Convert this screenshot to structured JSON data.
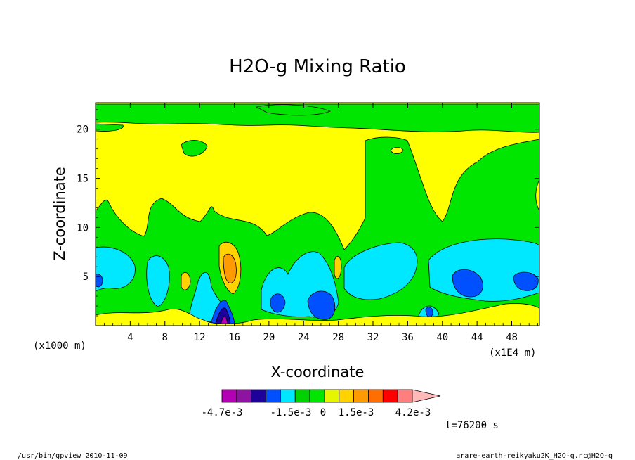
{
  "chart_data": {
    "type": "heatmap",
    "title": "H2O-g Mixing Ratio",
    "xlabel": "X-coordinate",
    "ylabel": "Z-coordinate",
    "x_ticks": [
      4,
      8,
      12,
      16,
      20,
      24,
      28,
      32,
      36,
      40,
      44,
      48
    ],
    "y_ticks": [
      5,
      10,
      15,
      20
    ],
    "xlim": [
      0,
      51.2
    ],
    "ylim": [
      0,
      22.7
    ],
    "x_unit_left": "(x1000 m)",
    "x_unit_right": "(x1E4 m)",
    "colorbar": {
      "colors": [
        "#b400b4",
        "#8c14a0",
        "#1e009b",
        "#0050ff",
        "#00e8ff",
        "#00d200",
        "#00e600",
        "#e6f500",
        "#ffd200",
        "#ff9b00",
        "#ff6e00",
        "#ff0000",
        "#ff7f7f",
        "#ffb9b9"
      ],
      "labels": [
        "-4.7e-3",
        "-1.5e-3",
        "0",
        "1.5e-3",
        "4.2e-3"
      ]
    },
    "levels_palette": {
      "deep_blue": "#1e009b",
      "blue": "#0050ff",
      "cyan": "#00e8ff",
      "green": "#00e600",
      "yellow": "#ffff00",
      "light_orange": "#ffd200",
      "orange": "#ff9b00",
      "purple": "#b400b4"
    }
  },
  "time_label": "t=76200 s",
  "footer": {
    "left": "/usr/bin/gpview   2010-11-09",
    "right": "arare-earth-reikyaku2K_H2O-g.nc@H2O-g"
  }
}
